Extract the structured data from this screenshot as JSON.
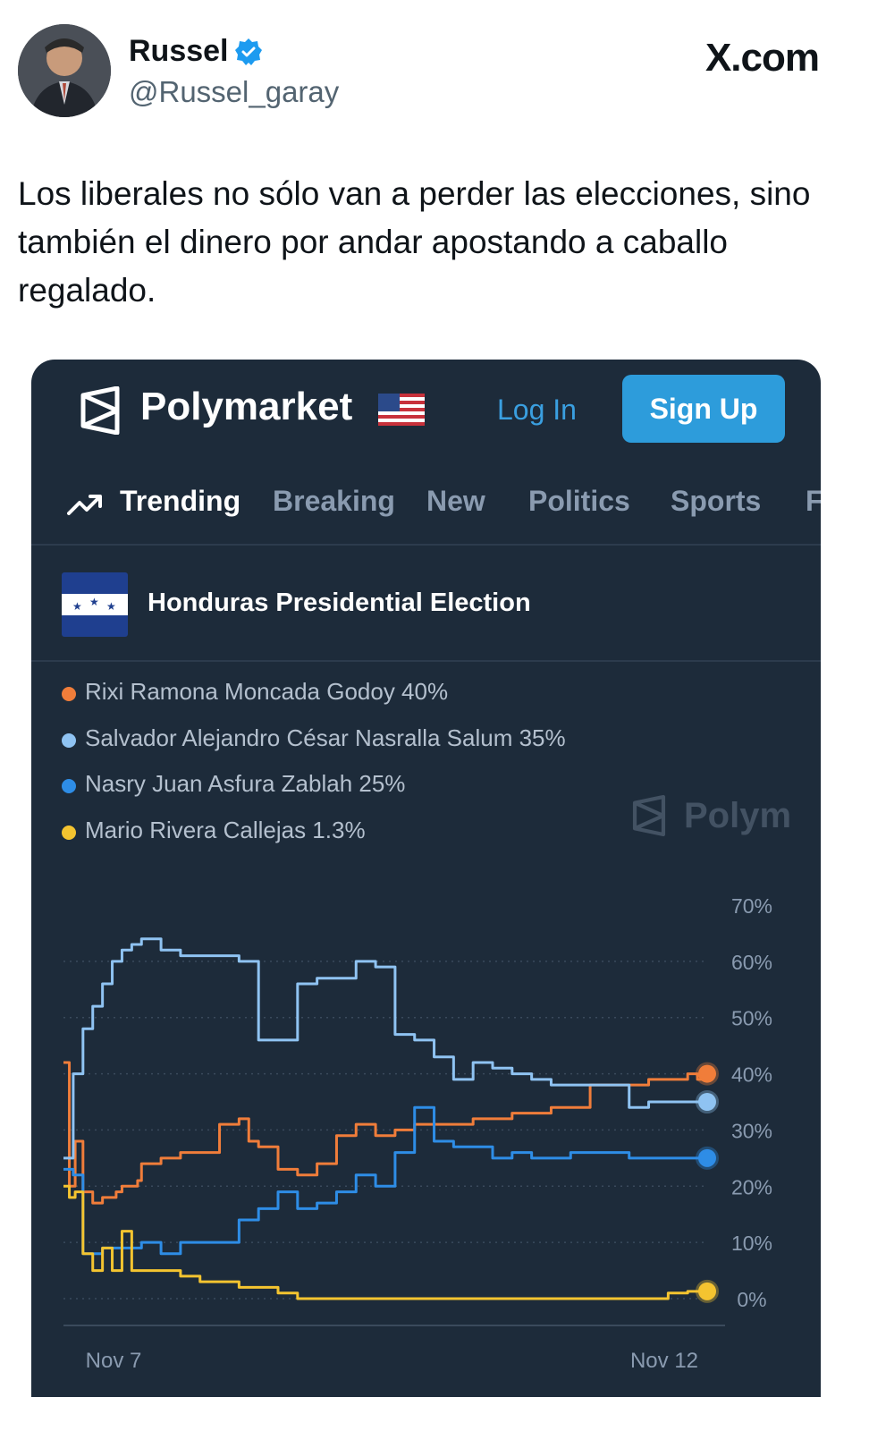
{
  "tweet": {
    "author_name": "Russel",
    "author_handle": "@Russel_garay",
    "site": "X.com",
    "text": "Los liberales no sólo van a perder las elecciones, sino también el dinero por andar apostando a caballo regalado."
  },
  "polymarket": {
    "brand": "Polymarket",
    "login_label": "Log In",
    "signup_label": "Sign Up",
    "nav": [
      "Trending",
      "Breaking",
      "New",
      "Politics",
      "Sports",
      "F"
    ],
    "market_title": "Honduras Presidential Election",
    "watermark": "Polym",
    "legend": [
      {
        "label": "Rixi Ramona Moncada Godoy 40%",
        "color": "#f07d3a"
      },
      {
        "label": "Salvador Alejandro César Nasralla Salum 35%",
        "color": "#8fc3f2"
      },
      {
        "label": "Nasry Juan Asfura Zablah 25%",
        "color": "#2e8de6"
      },
      {
        "label": "Mario Rivera Callejas 1.3%",
        "color": "#f4c430"
      }
    ]
  },
  "chart_data": {
    "type": "line",
    "y_axis": "right",
    "ylim": [
      0,
      70
    ],
    "y_ticks": [
      "70%",
      "60%",
      "50%",
      "40%",
      "30%",
      "20%",
      "10%",
      "0%"
    ],
    "x_ticks": [
      "Nov 7",
      "Nov 12"
    ],
    "grid": "dotted horizontal",
    "series": [
      {
        "name": "Rixi Ramona Moncada Godoy",
        "color": "#f07d3a",
        "points": [
          [
            0,
            42
          ],
          [
            0.3,
            20
          ],
          [
            0.6,
            28
          ],
          [
            1,
            19
          ],
          [
            1.5,
            17
          ],
          [
            2,
            18
          ],
          [
            2.7,
            19
          ],
          [
            3,
            20
          ],
          [
            3.8,
            21
          ],
          [
            4,
            24
          ],
          [
            5,
            25
          ],
          [
            6,
            26
          ],
          [
            7,
            26
          ],
          [
            8,
            31
          ],
          [
            9,
            32
          ],
          [
            9.5,
            28
          ],
          [
            10,
            27
          ],
          [
            11,
            23
          ],
          [
            12,
            22
          ],
          [
            13,
            24
          ],
          [
            14,
            29
          ],
          [
            15,
            31
          ],
          [
            16,
            29
          ],
          [
            17,
            30
          ],
          [
            18,
            31
          ],
          [
            19,
            31
          ],
          [
            20,
            31
          ],
          [
            21,
            32
          ],
          [
            22,
            32
          ],
          [
            23,
            33
          ],
          [
            24,
            33
          ],
          [
            25,
            34
          ],
          [
            26,
            34
          ],
          [
            27,
            38
          ],
          [
            28,
            38
          ],
          [
            29,
            38
          ],
          [
            30,
            39
          ],
          [
            31,
            39
          ],
          [
            32,
            40
          ],
          [
            32.5,
            39
          ],
          [
            33,
            40
          ]
        ]
      },
      {
        "name": "Salvador Alejandro César Nasralla Salum",
        "color": "#8fc3f2",
        "points": [
          [
            0,
            25
          ],
          [
            0.5,
            40
          ],
          [
            1,
            48
          ],
          [
            1.5,
            52
          ],
          [
            2,
            56
          ],
          [
            2.5,
            60
          ],
          [
            3,
            62
          ],
          [
            3.5,
            63
          ],
          [
            4,
            64
          ],
          [
            5,
            62
          ],
          [
            6,
            61
          ],
          [
            7,
            61
          ],
          [
            8,
            61
          ],
          [
            9,
            60
          ],
          [
            10,
            46
          ],
          [
            11,
            46
          ],
          [
            12,
            56
          ],
          [
            13,
            57
          ],
          [
            14,
            57
          ],
          [
            15,
            60
          ],
          [
            16,
            59
          ],
          [
            17,
            47
          ],
          [
            18,
            46
          ],
          [
            19,
            43
          ],
          [
            20,
            39
          ],
          [
            21,
            42
          ],
          [
            22,
            41
          ],
          [
            23,
            40
          ],
          [
            24,
            39
          ],
          [
            25,
            38
          ],
          [
            26,
            38
          ],
          [
            27,
            38
          ],
          [
            28,
            38
          ],
          [
            29,
            34
          ],
          [
            30,
            35
          ],
          [
            31,
            35
          ],
          [
            32,
            35
          ],
          [
            33,
            35
          ]
        ]
      },
      {
        "name": "Nasry Juan Asfura Zablah",
        "color": "#2e8de6",
        "points": [
          [
            0,
            23
          ],
          [
            0.5,
            22
          ],
          [
            1,
            8
          ],
          [
            2,
            9
          ],
          [
            3,
            9
          ],
          [
            4,
            10
          ],
          [
            5,
            8
          ],
          [
            6,
            10
          ],
          [
            7,
            10
          ],
          [
            8,
            10
          ],
          [
            9,
            14
          ],
          [
            10,
            16
          ],
          [
            11,
            19
          ],
          [
            12,
            16
          ],
          [
            13,
            17
          ],
          [
            14,
            19
          ],
          [
            15,
            22
          ],
          [
            16,
            20
          ],
          [
            17,
            26
          ],
          [
            18,
            34
          ],
          [
            19,
            28
          ],
          [
            20,
            27
          ],
          [
            21,
            27
          ],
          [
            22,
            25
          ],
          [
            23,
            26
          ],
          [
            24,
            25
          ],
          [
            25,
            25
          ],
          [
            26,
            26
          ],
          [
            27,
            26
          ],
          [
            28,
            26
          ],
          [
            29,
            25
          ],
          [
            30,
            25
          ],
          [
            31,
            25
          ],
          [
            32,
            25
          ],
          [
            33,
            25
          ]
        ]
      },
      {
        "name": "Mario Rivera Callejas",
        "color": "#f4c430",
        "points": [
          [
            0,
            20
          ],
          [
            0.3,
            18
          ],
          [
            0.6,
            19
          ],
          [
            1,
            8
          ],
          [
            1.5,
            5
          ],
          [
            2,
            9
          ],
          [
            2.5,
            5
          ],
          [
            3,
            12
          ],
          [
            3.5,
            5
          ],
          [
            4,
            5
          ],
          [
            5,
            5
          ],
          [
            6,
            4
          ],
          [
            7,
            3
          ],
          [
            8,
            3
          ],
          [
            9,
            2
          ],
          [
            10,
            2
          ],
          [
            11,
            1
          ],
          [
            12,
            0
          ],
          [
            14,
            0
          ],
          [
            16,
            0
          ],
          [
            18,
            0
          ],
          [
            20,
            0
          ],
          [
            22,
            0
          ],
          [
            24,
            0
          ],
          [
            26,
            0
          ],
          [
            28,
            0
          ],
          [
            30,
            0
          ],
          [
            31,
            1
          ],
          [
            32,
            1.3
          ],
          [
            33,
            1.3
          ]
        ]
      }
    ]
  }
}
